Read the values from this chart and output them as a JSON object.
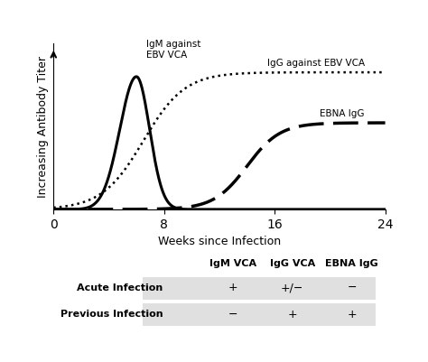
{
  "title": "",
  "xlabel": "Weeks since Infection",
  "ylabel": "Increasing Antibody Titer",
  "xlim": [
    0,
    24
  ],
  "ylim": [
    0,
    1.15
  ],
  "xticks": [
    0,
    8,
    16,
    24
  ],
  "background_color": "#ffffff",
  "line_color": "#000000",
  "igm_label": "IgM against\nEBV VCA",
  "igg_label": "IgG against EBV VCA",
  "ebna_label": "EBNA IgG",
  "table_headers": [
    "IgM VCA",
    "IgG VCA",
    "EBNA IgG"
  ],
  "table_rows": [
    [
      "Acute Infection",
      "+",
      "+/−",
      "−"
    ],
    [
      "Previous Infection",
      "−",
      "+",
      "+"
    ]
  ],
  "igm_peak": 6.0,
  "igm_rise_sigma": 1.2,
  "igm_fall_sigma": 0.95,
  "igm_amplitude": 0.92,
  "igg_midpoint": 6.5,
  "igg_steepness": 1.5,
  "igg_plateau": 0.95,
  "ebna_midpoint": 14.0,
  "ebna_steepness": 1.2,
  "ebna_plateau": 0.6
}
